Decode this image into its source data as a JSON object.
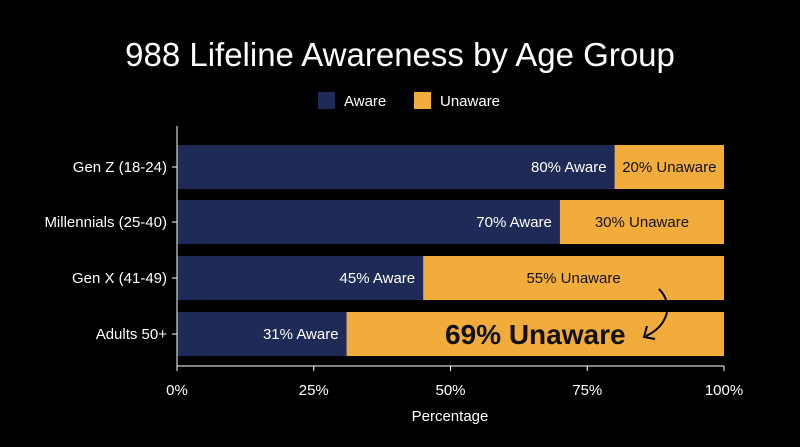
{
  "chart_data": {
    "type": "bar",
    "orientation": "horizontal",
    "stacked": true,
    "title": "988 Lifeline Awareness by Age Group",
    "xlabel": "Percentage",
    "ylabel": "",
    "xlim": [
      0,
      100
    ],
    "x_ticks": [
      "0%",
      "25%",
      "50%",
      "75%",
      "100%"
    ],
    "x_tick_values": [
      0,
      25,
      50,
      75,
      100
    ],
    "categories": [
      "Gen Z (18-24)",
      "Millennials (25-40)",
      "Gen X (41-49)",
      "Adults 50+"
    ],
    "series": [
      {
        "name": "Aware",
        "color": "#1f2a56",
        "values": [
          80,
          70,
          45,
          31
        ],
        "labels": [
          "80% Aware",
          "70% Aware",
          "45% Aware",
          "31% Aware"
        ]
      },
      {
        "name": "Unaware",
        "color": "#f2ac3c",
        "values": [
          20,
          30,
          55,
          69
        ],
        "labels": [
          "20% Unaware",
          "30% Unaware",
          "55% Unaware",
          "69% Unaware"
        ]
      }
    ],
    "legend": {
      "placement": "top-center"
    },
    "highlight": {
      "category": "Adults 50+",
      "series": "Unaware",
      "note": "arrow pointing to enlarged label"
    },
    "grid": false
  }
}
